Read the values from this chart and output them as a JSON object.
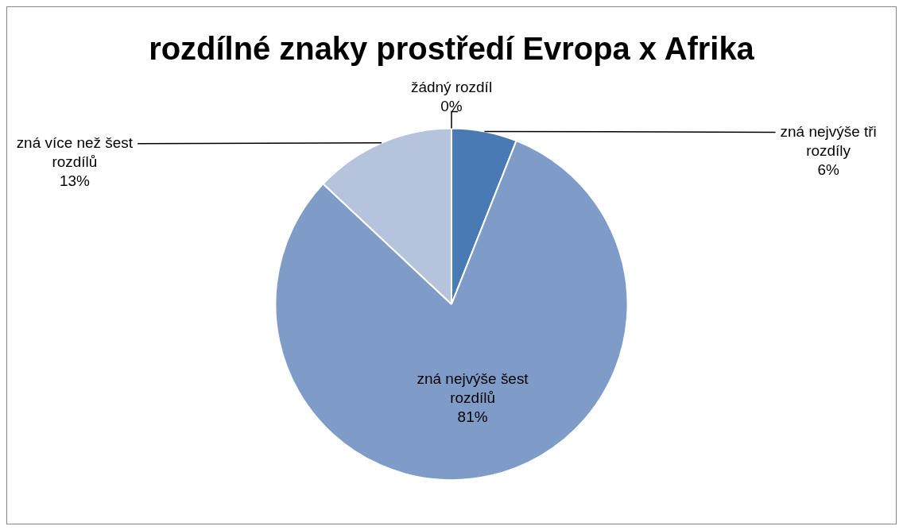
{
  "chart_data": {
    "type": "pie",
    "title": "rozdílné znaky prostředí Evropa x Afrika",
    "categories": [
      "žádný rozdíl",
      "zná nejvýše tři rozdíly",
      "zná nejvýše šest rozdílů",
      "zná více než šest rozdílů"
    ],
    "values": [
      0,
      6,
      81,
      13
    ],
    "colors": [
      "#4a7ab4",
      "#4a7ab4",
      "#7f9cc8",
      "#b5c3dd"
    ],
    "value_labels": [
      "0%",
      "6%",
      "81%",
      "13%"
    ],
    "legend": false
  }
}
